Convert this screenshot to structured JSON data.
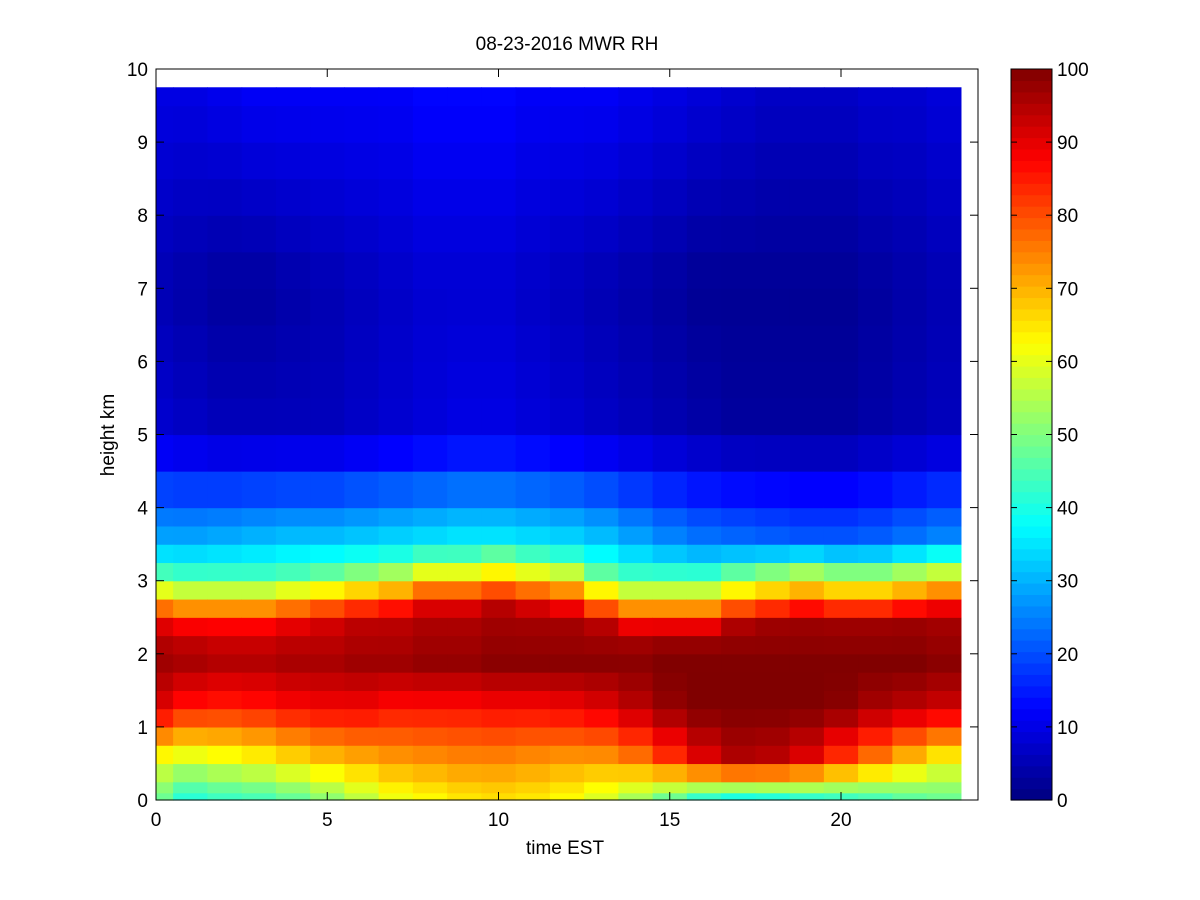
{
  "chart_data": {
    "type": "heatmap",
    "title": "08-23-2016 MWR RH",
    "xlabel": "time EST",
    "ylabel": "height km",
    "xlim": [
      0,
      24
    ],
    "ylim": [
      0,
      10
    ],
    "x_ticks": [
      "0",
      "5",
      "10",
      "15",
      "20"
    ],
    "y_ticks": [
      "0",
      "1",
      "2",
      "3",
      "4",
      "5",
      "6",
      "7",
      "8",
      "9",
      "10"
    ],
    "colorbar": {
      "colormap": "jet",
      "range": [
        0,
        100
      ],
      "ticks": [
        "0",
        "10",
        "20",
        "30",
        "40",
        "50",
        "60",
        "70",
        "80",
        "90",
        "100"
      ]
    },
    "time_columns": [
      0,
      1,
      2,
      3,
      4,
      5,
      6,
      7,
      8,
      9,
      10,
      11,
      12,
      13,
      14,
      15,
      16,
      17,
      18,
      19,
      20,
      21,
      22,
      23
    ],
    "height_profile_km": [
      0,
      0.1,
      0.25,
      0.5,
      0.75,
      1,
      1.25,
      1.5,
      1.75,
      2,
      2.25,
      2.5,
      2.75,
      3,
      3.25,
      3.5,
      3.75,
      4,
      4.5,
      5,
      5.5,
      6,
      6.5,
      7,
      7.5,
      8,
      8.5,
      9,
      9.5,
      9.75
    ],
    "surface_rh": [
      47,
      40,
      42,
      43,
      46,
      50,
      55,
      60,
      62,
      64,
      65,
      64,
      62,
      58,
      52,
      45,
      38,
      35,
      36,
      38,
      40,
      42,
      45,
      47
    ],
    "low_level_rh": [
      60,
      58,
      60,
      62,
      65,
      68,
      70,
      72,
      73,
      74,
      74,
      73,
      72,
      72,
      75,
      82,
      90,
      95,
      94,
      90,
      82,
      75,
      68,
      62
    ],
    "rh_at_1_25km": [
      90,
      85,
      84,
      85,
      87,
      88,
      88,
      86,
      86,
      86,
      87,
      87,
      88,
      90,
      94,
      98,
      100,
      100,
      100,
      100,
      99,
      96,
      94,
      92
    ],
    "moist_layer_peak_rh": [
      97,
      96,
      95,
      95,
      96,
      96,
      97,
      97,
      98,
      98,
      99,
      99,
      99,
      99,
      99,
      100,
      100,
      100,
      100,
      100,
      100,
      100,
      100,
      99
    ],
    "moist_layer_top_km": [
      2.5,
      2.45,
      2.45,
      2.45,
      2.5,
      2.55,
      2.6,
      2.65,
      2.75,
      2.75,
      2.8,
      2.75,
      2.7,
      2.55,
      2.45,
      2.45,
      2.45,
      2.55,
      2.6,
      2.65,
      2.6,
      2.6,
      2.65,
      2.7
    ],
    "rh_at_3_5km": [
      30,
      30,
      31,
      32,
      33,
      33,
      34,
      35,
      36,
      37,
      37,
      36,
      35,
      33,
      30,
      27,
      25,
      24,
      23,
      22,
      22,
      23,
      25,
      27
    ],
    "rh_at_5km": [
      8,
      7,
      6,
      6,
      6,
      6,
      7,
      8,
      9,
      10,
      10,
      9,
      8,
      7,
      6,
      5,
      4,
      3,
      3,
      3,
      3,
      4,
      5,
      6
    ],
    "rh_at_7km": [
      5,
      4,
      3,
      3,
      4,
      5,
      6,
      7,
      8,
      8,
      8,
      7,
      6,
      5,
      4,
      3,
      2,
      2,
      2,
      2,
      2,
      3,
      4,
      5
    ],
    "rh_at_9_5km": [
      10,
      10,
      11,
      12,
      12,
      12,
      12,
      12,
      13,
      13,
      13,
      12,
      12,
      12,
      11,
      10,
      9,
      8,
      7,
      7,
      7,
      8,
      8,
      9
    ]
  }
}
